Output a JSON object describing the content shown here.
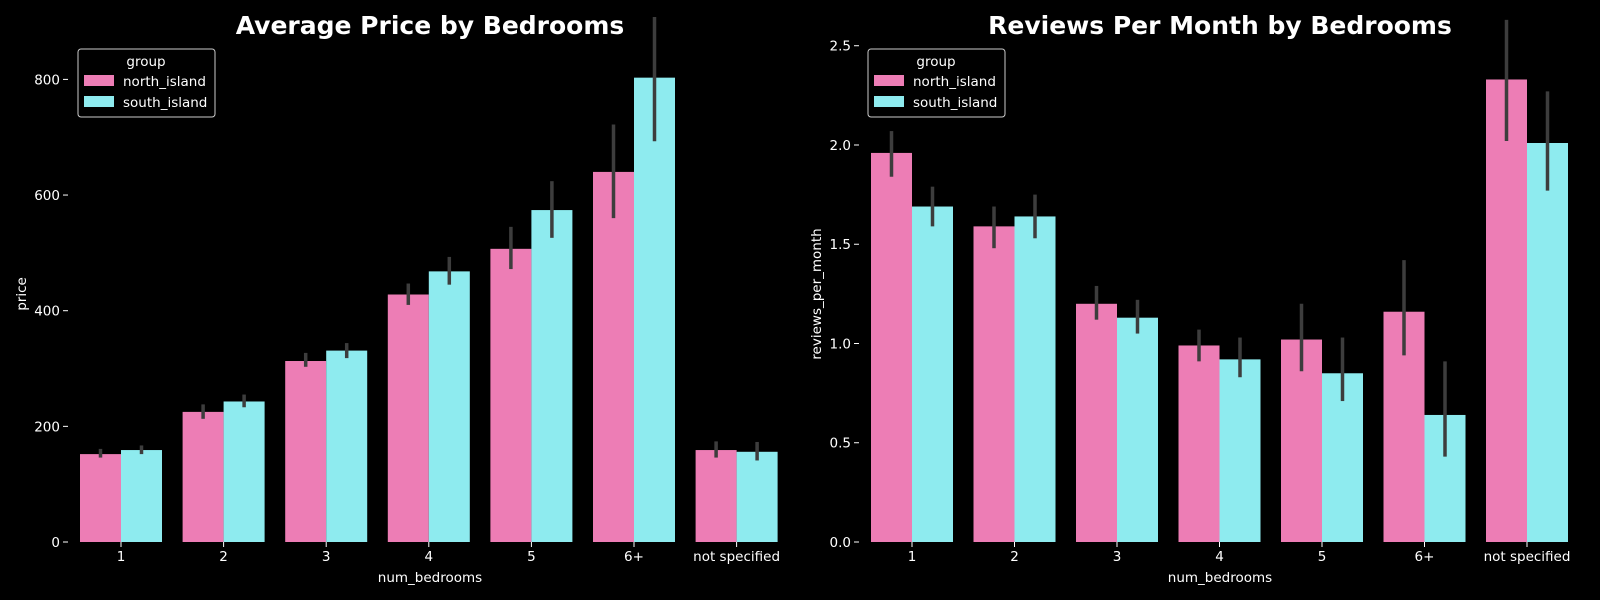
{
  "colors": {
    "background": "#000000",
    "north_island": "#ed7db5",
    "south_island": "#8eebef",
    "error_bar": "#3d3d3d",
    "text": "#ffffff"
  },
  "chart_data": [
    {
      "type": "bar",
      "title": "Average Price by Bedrooms",
      "xlabel": "num_bedrooms",
      "ylabel": "price",
      "categories": [
        "1",
        "2",
        "3",
        "4",
        "5",
        "6+",
        "not specified"
      ],
      "ylim": [
        0,
        920
      ],
      "yticks": [
        0,
        200,
        400,
        600,
        800
      ],
      "grid": false,
      "legend": {
        "title": "group",
        "placement": "top-left"
      },
      "series": [
        {
          "name": "north_island",
          "color": "#ed7db5",
          "values": [
            152,
            225,
            313,
            428,
            507,
            640,
            159
          ],
          "ci_low": [
            146,
            213,
            303,
            410,
            472,
            560,
            146
          ],
          "ci_high": [
            161,
            238,
            327,
            447,
            545,
            722,
            174
          ]
        },
        {
          "name": "south_island",
          "color": "#8eebef",
          "values": [
            159,
            243,
            331,
            468,
            574,
            803,
            156
          ],
          "ci_low": [
            152,
            233,
            318,
            445,
            526,
            693,
            141
          ],
          "ci_high": [
            167,
            255,
            344,
            493,
            624,
            908,
            173
          ]
        }
      ]
    },
    {
      "type": "bar",
      "title": "Reviews Per Month by Bedrooms",
      "xlabel": "num_bedrooms",
      "ylabel": "reviews_per_month",
      "categories": [
        "1",
        "2",
        "3",
        "4",
        "5",
        "6+",
        "not specified"
      ],
      "ylim": [
        0,
        2.68
      ],
      "yticks": [
        0.0,
        0.5,
        1.0,
        1.5,
        2.0,
        2.5
      ],
      "ytick_labels": [
        "0.0",
        "0.5",
        "1.0",
        "1.5",
        "2.0",
        "2.5"
      ],
      "grid": false,
      "legend": {
        "title": "group",
        "placement": "top-left"
      },
      "series": [
        {
          "name": "north_island",
          "color": "#ed7db5",
          "values": [
            1.96,
            1.59,
            1.2,
            0.99,
            1.02,
            1.16,
            2.33
          ],
          "ci_low": [
            1.84,
            1.48,
            1.12,
            0.91,
            0.86,
            0.94,
            2.02
          ],
          "ci_high": [
            2.07,
            1.69,
            1.29,
            1.07,
            1.2,
            1.42,
            2.63
          ]
        },
        {
          "name": "south_island",
          "color": "#8eebef",
          "values": [
            1.69,
            1.64,
            1.13,
            0.92,
            0.85,
            0.64,
            2.01
          ],
          "ci_low": [
            1.59,
            1.53,
            1.05,
            0.83,
            0.71,
            0.43,
            1.77
          ],
          "ci_high": [
            1.79,
            1.75,
            1.22,
            1.03,
            1.03,
            0.91,
            2.27
          ]
        }
      ]
    }
  ]
}
